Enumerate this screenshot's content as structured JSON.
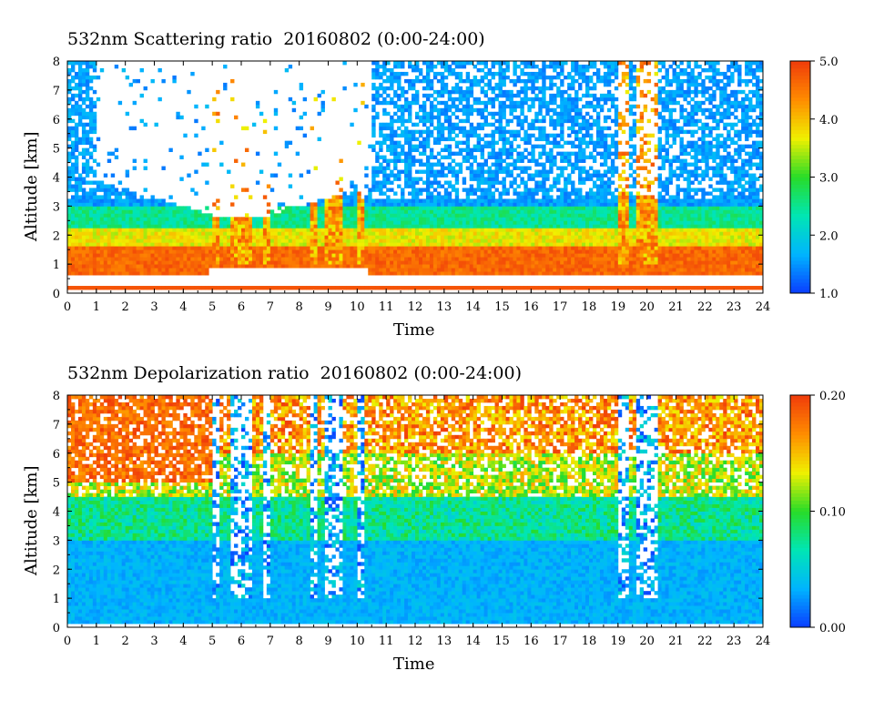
{
  "chart_data": [
    {
      "type": "heatmap",
      "title": "532nm Scattering ratio  20160802 (0:00-24:00)",
      "xlabel": "Time",
      "ylabel": "Altitude [km]",
      "xlim": [
        0,
        24
      ],
      "ylim": [
        0,
        8
      ],
      "x_ticks": [
        "0",
        "1",
        "2",
        "3",
        "4",
        "5",
        "6",
        "7",
        "8",
        "9",
        "10",
        "11",
        "12",
        "13",
        "14",
        "15",
        "16",
        "17",
        "18",
        "19",
        "20",
        "21",
        "22",
        "23",
        "24"
      ],
      "y_ticks": [
        "0",
        "1",
        "2",
        "3",
        "4",
        "5",
        "6",
        "7",
        "8"
      ],
      "colorbar": {
        "range": [
          1.0,
          5.0
        ],
        "tick_labels": [
          "1.0",
          "2.0",
          "3.0",
          "4.0",
          "5.0"
        ],
        "tick_values": [
          1.0,
          2.0,
          3.0,
          4.0,
          5.0
        ],
        "colors": [
          "#0a3cff",
          "#00b4ff",
          "#00e6b4",
          "#28dc28",
          "#f0f000",
          "#ff8c00",
          "#f03c0a"
        ]
      }
    },
    {
      "type": "heatmap",
      "title": "532nm Depolarization ratio  20160802 (0:00-24:00)",
      "xlabel": "Time",
      "ylabel": "Altitude [km]",
      "xlim": [
        0,
        24
      ],
      "ylim": [
        0,
        8
      ],
      "x_ticks": [
        "0",
        "1",
        "2",
        "3",
        "4",
        "5",
        "6",
        "7",
        "8",
        "9",
        "10",
        "11",
        "12",
        "13",
        "14",
        "15",
        "16",
        "17",
        "18",
        "19",
        "20",
        "21",
        "22",
        "23",
        "24"
      ],
      "y_ticks": [
        "0",
        "1",
        "2",
        "3",
        "4",
        "5",
        "6",
        "7",
        "8"
      ],
      "colorbar": {
        "range": [
          0.0,
          0.2
        ],
        "tick_labels": [
          "0.00",
          "0.10",
          "0.20"
        ],
        "tick_values": [
          0.0,
          0.1,
          0.2
        ],
        "colors": [
          "#0a3cff",
          "#00b4ff",
          "#00e6b4",
          "#28dc28",
          "#f0f000",
          "#ff8c00",
          "#f03c0a"
        ]
      }
    }
  ]
}
